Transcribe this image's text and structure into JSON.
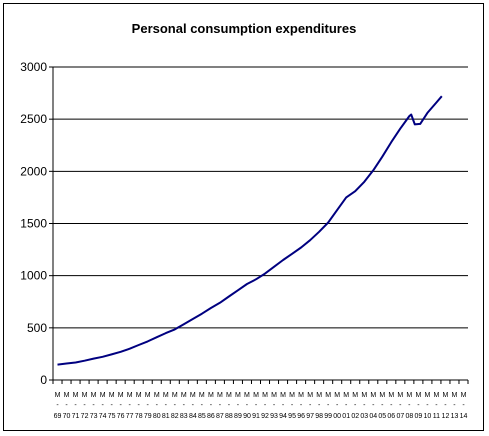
{
  "chart_data": {
    "type": "line",
    "title": "Personal consumption expenditures",
    "xlabel": "",
    "ylabel": "",
    "ylim": [
      0,
      3000
    ],
    "yticks": [
      0,
      500,
      1000,
      1500,
      2000,
      2500,
      3000
    ],
    "x_categories": [
      {
        "month": "M",
        "year": "69"
      },
      {
        "month": "M",
        "year": "70"
      },
      {
        "month": "M",
        "year": "71"
      },
      {
        "month": "M",
        "year": "72"
      },
      {
        "month": "M",
        "year": "73"
      },
      {
        "month": "M",
        "year": "74"
      },
      {
        "month": "M",
        "year": "75"
      },
      {
        "month": "M",
        "year": "76"
      },
      {
        "month": "M",
        "year": "77"
      },
      {
        "month": "M",
        "year": "78"
      },
      {
        "month": "M",
        "year": "79"
      },
      {
        "month": "M",
        "year": "80"
      },
      {
        "month": "M",
        "year": "81"
      },
      {
        "month": "M",
        "year": "82"
      },
      {
        "month": "M",
        "year": "83"
      },
      {
        "month": "M",
        "year": "84"
      },
      {
        "month": "M",
        "year": "85"
      },
      {
        "month": "M",
        "year": "86"
      },
      {
        "month": "M",
        "year": "87"
      },
      {
        "month": "M",
        "year": "88"
      },
      {
        "month": "M",
        "year": "89"
      },
      {
        "month": "M",
        "year": "90"
      },
      {
        "month": "M",
        "year": "91"
      },
      {
        "month": "M",
        "year": "92"
      },
      {
        "month": "M",
        "year": "93"
      },
      {
        "month": "M",
        "year": "94"
      },
      {
        "month": "M",
        "year": "95"
      },
      {
        "month": "M",
        "year": "96"
      },
      {
        "month": "M",
        "year": "97"
      },
      {
        "month": "M",
        "year": "98"
      },
      {
        "month": "M",
        "year": "99"
      },
      {
        "month": "M",
        "year": "00"
      },
      {
        "month": "M",
        "year": "01"
      },
      {
        "month": "M",
        "year": "02"
      },
      {
        "month": "M",
        "year": "03"
      },
      {
        "month": "M",
        "year": "04"
      },
      {
        "month": "M",
        "year": "05"
      },
      {
        "month": "M",
        "year": "06"
      },
      {
        "month": "M",
        "year": "07"
      },
      {
        "month": "M",
        "year": "08"
      },
      {
        "month": "M",
        "year": "09"
      },
      {
        "month": "M",
        "year": "10"
      },
      {
        "month": "M",
        "year": "11"
      },
      {
        "month": "M",
        "year": "12"
      },
      {
        "month": "M",
        "year": "13"
      },
      {
        "month": "M",
        "year": "14"
      }
    ],
    "series": [
      {
        "color": "#000080",
        "points": [
          [
            0,
            148
          ],
          [
            1,
            158
          ],
          [
            2,
            168
          ],
          [
            3,
            185
          ],
          [
            4,
            205
          ],
          [
            5,
            222
          ],
          [
            6,
            245
          ],
          [
            7,
            270
          ],
          [
            8,
            300
          ],
          [
            9,
            335
          ],
          [
            10,
            370
          ],
          [
            11,
            410
          ],
          [
            12,
            450
          ],
          [
            13,
            485
          ],
          [
            14,
            535
          ],
          [
            15,
            585
          ],
          [
            16,
            635
          ],
          [
            17,
            690
          ],
          [
            18,
            740
          ],
          [
            19,
            800
          ],
          [
            20,
            860
          ],
          [
            21,
            920
          ],
          [
            22,
            965
          ],
          [
            23,
            1020
          ],
          [
            24,
            1085
          ],
          [
            25,
            1150
          ],
          [
            26,
            1210
          ],
          [
            27,
            1270
          ],
          [
            28,
            1340
          ],
          [
            29,
            1420
          ],
          [
            30,
            1510
          ],
          [
            31,
            1630
          ],
          [
            32,
            1750
          ],
          [
            33,
            1810
          ],
          [
            34,
            1900
          ],
          [
            35,
            2010
          ],
          [
            36,
            2140
          ],
          [
            37,
            2280
          ],
          [
            38,
            2410
          ],
          [
            39,
            2530
          ],
          [
            39.2,
            2545
          ],
          [
            39.6,
            2450
          ],
          [
            40.2,
            2455
          ],
          [
            41,
            2560
          ],
          [
            42,
            2660
          ],
          [
            42.6,
            2720
          ]
        ]
      }
    ],
    "grid": "horizontal",
    "legend": "none"
  }
}
